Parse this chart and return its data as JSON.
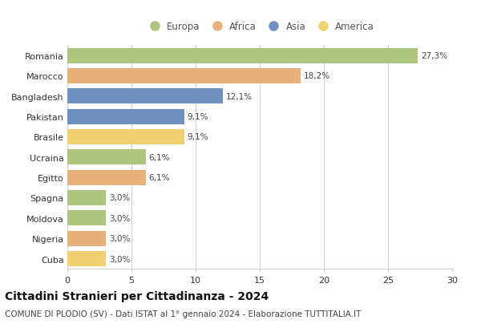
{
  "categories": [
    "Romania",
    "Marocco",
    "Bangladesh",
    "Pakistan",
    "Brasile",
    "Ucraina",
    "Egitto",
    "Spagna",
    "Moldova",
    "Nigeria",
    "Cuba"
  ],
  "values": [
    27.3,
    18.2,
    12.1,
    9.1,
    9.1,
    6.1,
    6.1,
    3.0,
    3.0,
    3.0,
    3.0
  ],
  "labels": [
    "27,3%",
    "18,2%",
    "12,1%",
    "9,1%",
    "9,1%",
    "6,1%",
    "6,1%",
    "3,0%",
    "3,0%",
    "3,0%",
    "3,0%"
  ],
  "continents": [
    "Europa",
    "Africa",
    "Asia",
    "Asia",
    "America",
    "Europa",
    "Africa",
    "Europa",
    "Europa",
    "Africa",
    "America"
  ],
  "colors": {
    "Europa": "#adc57e",
    "Africa": "#e8b07a",
    "Asia": "#7090c0",
    "America": "#f0d070"
  },
  "legend_order": [
    "Europa",
    "Africa",
    "Asia",
    "America"
  ],
  "title": "Cittadini Stranieri per Cittadinanza - 2024",
  "subtitle": "COMUNE DI PLODIO (SV) - Dati ISTAT al 1° gennaio 2024 - Elaborazione TUTTITALIA.IT",
  "xlim": [
    0,
    30
  ],
  "xticks": [
    0,
    5,
    10,
    15,
    20,
    25,
    30
  ],
  "background_color": "#ffffff",
  "bar_height": 0.75,
  "grid_color": "#d0d0d0",
  "title_fontsize": 10,
  "subtitle_fontsize": 7.5,
  "label_fontsize": 7.5,
  "tick_fontsize": 8,
  "legend_fontsize": 8.5
}
